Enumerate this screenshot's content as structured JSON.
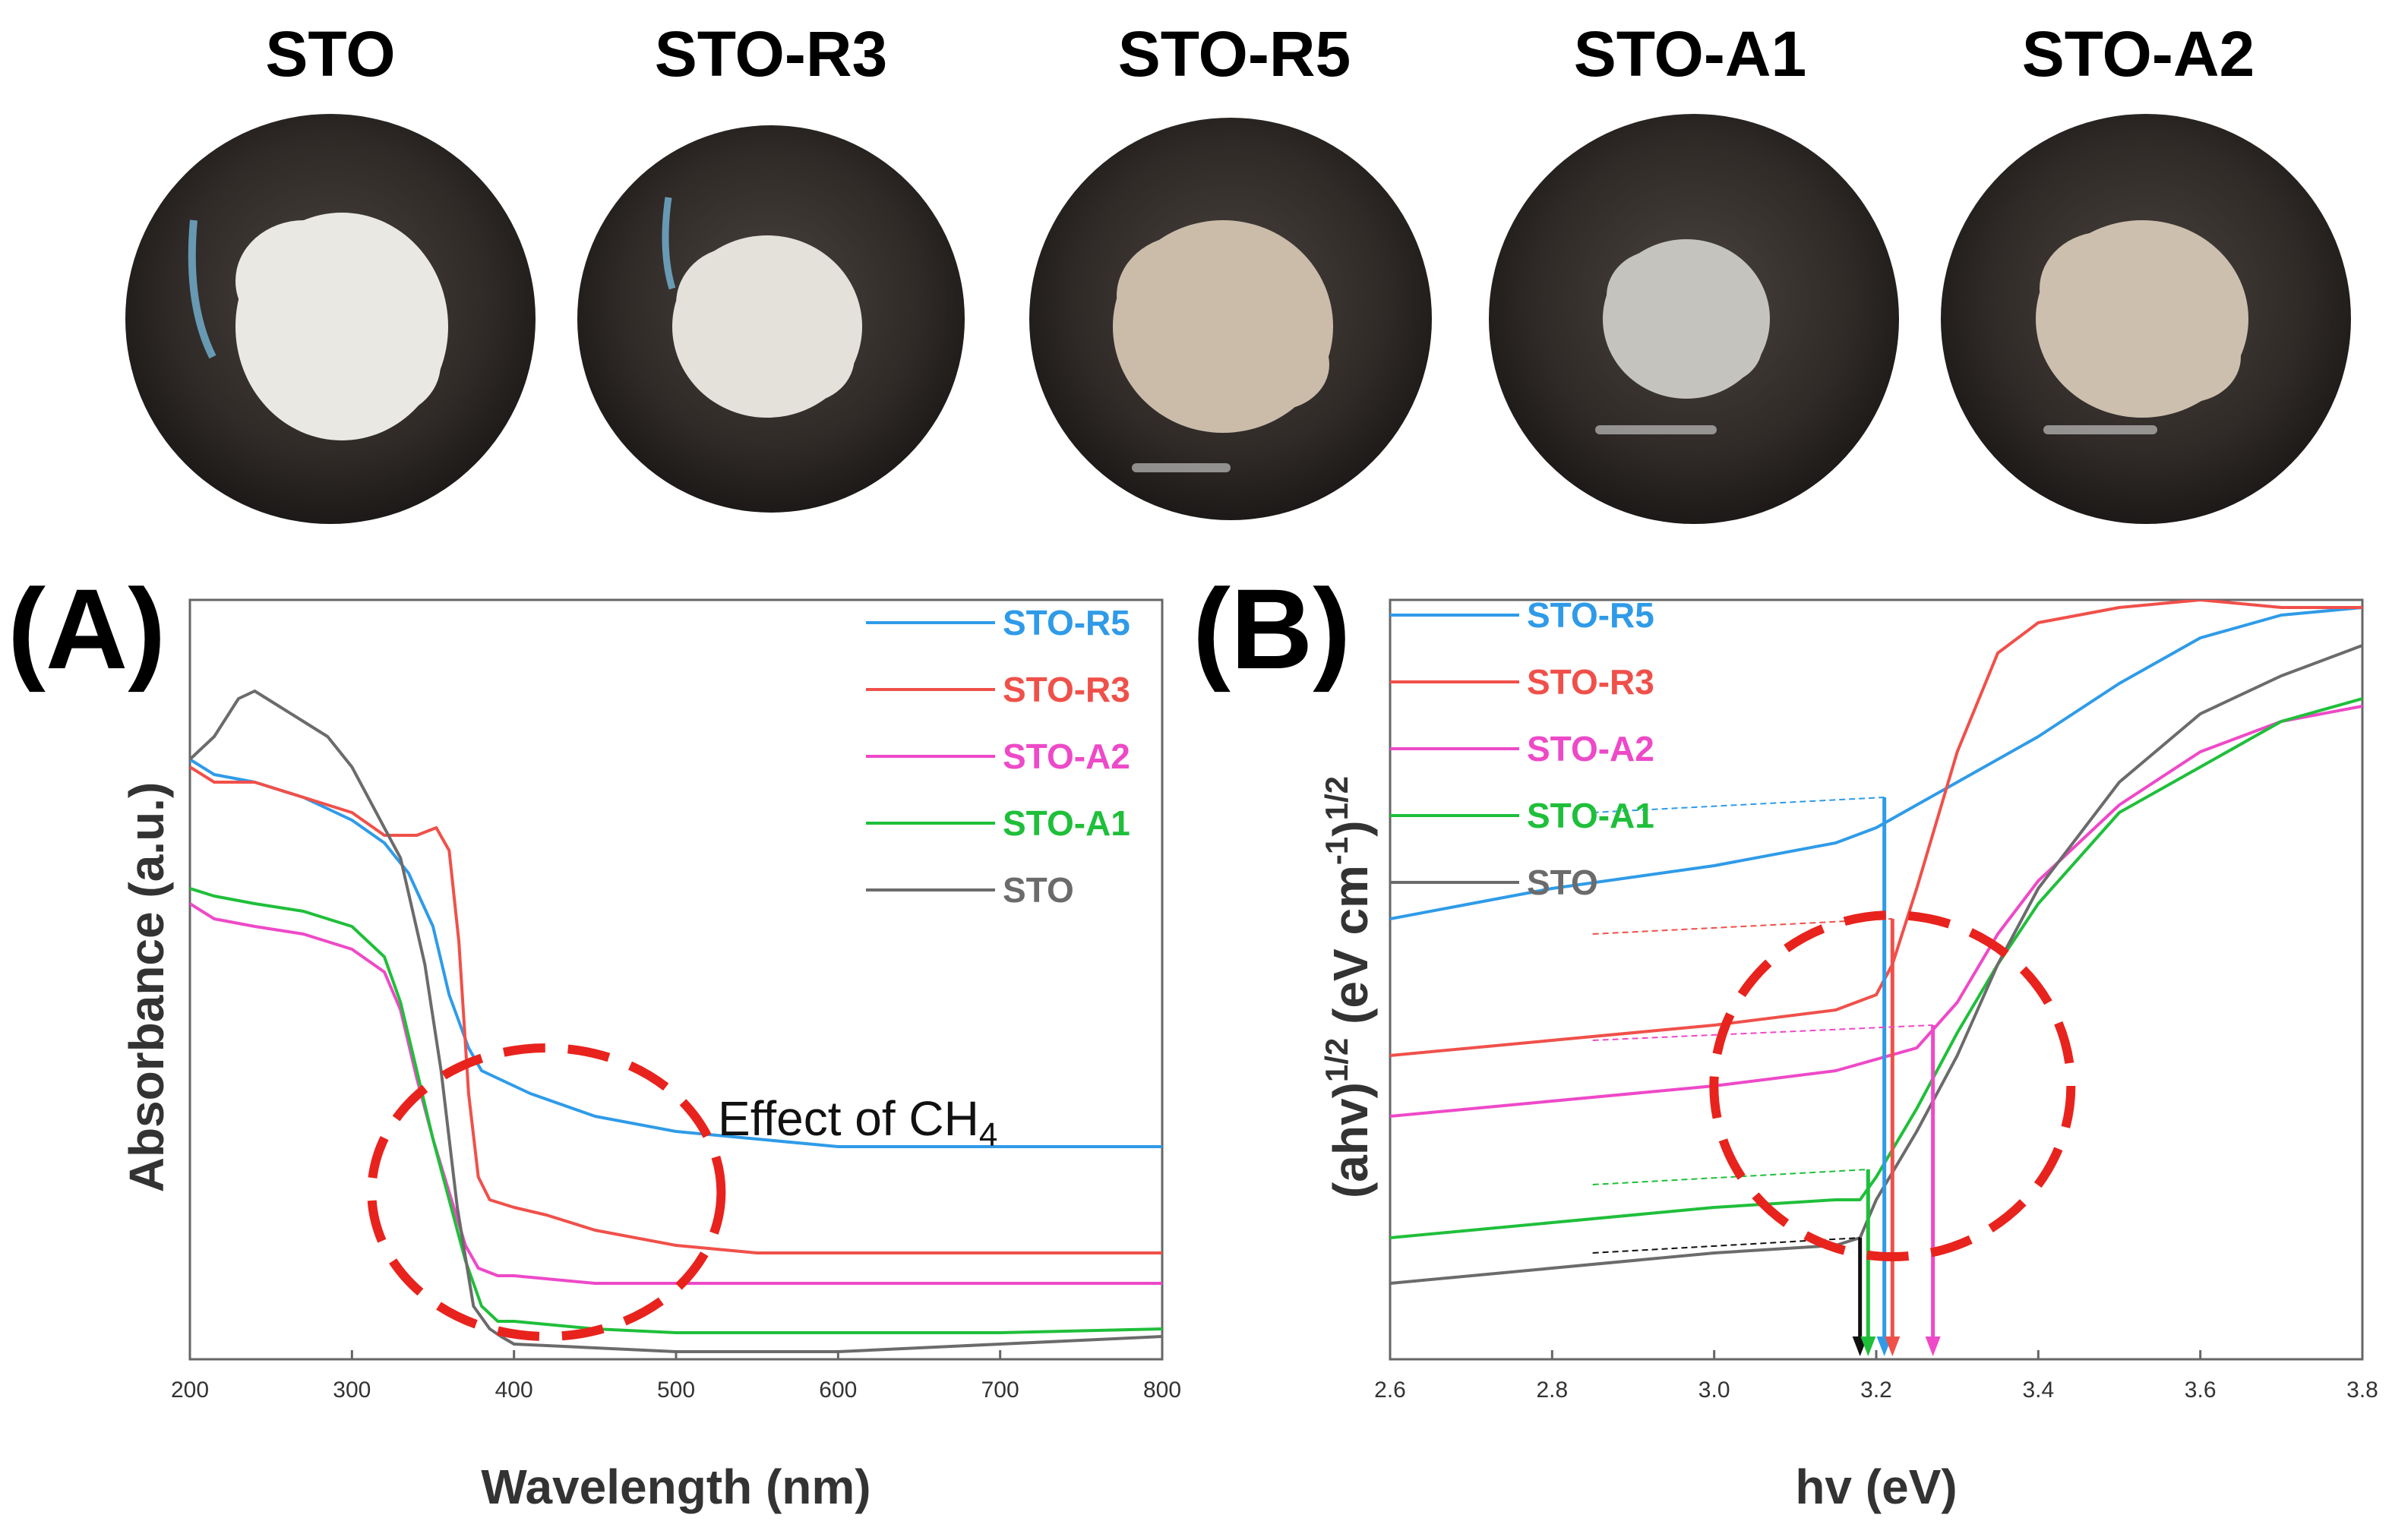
{
  "samples": [
    {
      "name": "STO",
      "powder_color": "#e9e8e3"
    },
    {
      "name": "STO-R3",
      "powder_color": "#e4e1da"
    },
    {
      "name": "STO-R5",
      "powder_color": "#cbbcaa"
    },
    {
      "name": "STO-A1",
      "powder_color": "#c4c3be"
    },
    {
      "name": "STO-A2",
      "powder_color": "#cdbfae"
    }
  ],
  "colors": {
    "STO-R5": "#2f9be8",
    "STO-R3": "#f0504a",
    "STO-A2": "#ee49c8",
    "STO-A1": "#1fbf3a",
    "STO": "#6b6b6b",
    "circle": "#e8231d"
  },
  "chart_data": [
    {
      "type": "line",
      "panel_label": "(A)",
      "title": "",
      "xlabel": "Wavelength (nm)",
      "ylabel": "Absorbance (a.u.)",
      "xlim": [
        200,
        800
      ],
      "ylim": [
        0,
        1
      ],
      "xticks": [
        200,
        300,
        400,
        500,
        600,
        700,
        800
      ],
      "y_tick_labels_shown": false,
      "legend_position": "top-right",
      "annotation": {
        "text": "Effect of CH",
        "subscript": "4",
        "marker": "dashed circle around absorption edge",
        "center": [
          420,
          0.22
        ]
      },
      "series": [
        {
          "name": "STO-R5",
          "x": [
            200,
            215,
            240,
            270,
            300,
            320,
            335,
            350,
            360,
            372,
            380,
            390,
            410,
            450,
            500,
            550,
            600,
            700,
            800
          ],
          "y": [
            0.79,
            0.77,
            0.76,
            0.74,
            0.71,
            0.68,
            0.64,
            0.57,
            0.48,
            0.41,
            0.38,
            0.37,
            0.35,
            0.32,
            0.3,
            0.29,
            0.28,
            0.28,
            0.28
          ]
        },
        {
          "name": "STO-R3",
          "x": [
            200,
            215,
            240,
            270,
            300,
            320,
            340,
            352,
            360,
            366,
            372,
            378,
            385,
            400,
            420,
            450,
            500,
            550,
            600,
            700,
            800
          ],
          "y": [
            0.78,
            0.76,
            0.76,
            0.74,
            0.72,
            0.69,
            0.69,
            0.7,
            0.67,
            0.55,
            0.35,
            0.24,
            0.21,
            0.2,
            0.19,
            0.17,
            0.15,
            0.14,
            0.14,
            0.14,
            0.14
          ]
        },
        {
          "name": "STO-A2",
          "x": [
            200,
            215,
            240,
            270,
            300,
            320,
            330,
            340,
            350,
            360,
            370,
            378,
            390,
            400,
            450,
            500,
            600,
            700,
            800
          ],
          "y": [
            0.6,
            0.58,
            0.57,
            0.56,
            0.54,
            0.51,
            0.46,
            0.37,
            0.29,
            0.22,
            0.15,
            0.12,
            0.11,
            0.11,
            0.1,
            0.1,
            0.1,
            0.1,
            0.1
          ]
        },
        {
          "name": "STO-A1",
          "x": [
            200,
            215,
            240,
            270,
            300,
            320,
            330,
            340,
            350,
            360,
            370,
            380,
            390,
            400,
            450,
            500,
            600,
            700,
            800
          ],
          "y": [
            0.62,
            0.61,
            0.6,
            0.59,
            0.57,
            0.53,
            0.47,
            0.38,
            0.29,
            0.21,
            0.13,
            0.07,
            0.05,
            0.05,
            0.04,
            0.035,
            0.035,
            0.035,
            0.04
          ]
        },
        {
          "name": "STO",
          "x": [
            200,
            215,
            230,
            240,
            255,
            270,
            285,
            300,
            315,
            330,
            345,
            355,
            365,
            375,
            385,
            392,
            400,
            450,
            500,
            550,
            600,
            700,
            800
          ],
          "y": [
            0.79,
            0.82,
            0.87,
            0.88,
            0.86,
            0.84,
            0.82,
            0.78,
            0.72,
            0.66,
            0.52,
            0.38,
            0.2,
            0.07,
            0.04,
            0.03,
            0.02,
            0.015,
            0.01,
            0.01,
            0.01,
            0.02,
            0.03
          ]
        }
      ]
    },
    {
      "type": "line",
      "panel_label": "(B)",
      "title": "",
      "xlabel": "hv (eV)",
      "ylabel": "(ahv)^1/2 (eV cm^-1)^1/2",
      "ylabel_parts": {
        "main": "(ahv)",
        "sup1": "1/2",
        "mid": " (eV cm",
        "sup2": "-1",
        "close": ")",
        "sup3": "1/2"
      },
      "xlim": [
        2.6,
        3.8
      ],
      "ylim": [
        0,
        1
      ],
      "xticks": [
        2.6,
        2.8,
        3.0,
        3.2,
        3.4,
        3.6,
        3.8
      ],
      "y_tick_labels_shown": false,
      "legend_position": "top-left",
      "band_gaps": [
        {
          "name": "STO",
          "value": 3.18
        },
        {
          "name": "STO-A1",
          "value": 3.19
        },
        {
          "name": "STO-R5",
          "value": 3.21
        },
        {
          "name": "STO-R3",
          "value": 3.22
        },
        {
          "name": "STO-A2",
          "value": 3.27
        }
      ],
      "tangent_starts": {
        "STO-R5": 0.74,
        "STO-R3": 0.58,
        "STO-A2": 0.44,
        "STO-A1": 0.25,
        "STO": 0.16
      },
      "series": [
        {
          "name": "STO-R5",
          "x": [
            2.6,
            2.8,
            3.0,
            3.15,
            3.2,
            3.25,
            3.3,
            3.4,
            3.5,
            3.6,
            3.7,
            3.8
          ],
          "y": [
            0.58,
            0.62,
            0.65,
            0.68,
            0.7,
            0.73,
            0.76,
            0.82,
            0.89,
            0.95,
            0.98,
            0.99
          ]
        },
        {
          "name": "STO-R3",
          "x": [
            2.6,
            2.8,
            3.0,
            3.15,
            3.2,
            3.22,
            3.25,
            3.3,
            3.35,
            3.4,
            3.5,
            3.6,
            3.7,
            3.8
          ],
          "y": [
            0.4,
            0.42,
            0.44,
            0.46,
            0.48,
            0.52,
            0.62,
            0.8,
            0.93,
            0.97,
            0.99,
            1.0,
            0.99,
            0.99
          ]
        },
        {
          "name": "STO-A2",
          "x": [
            2.6,
            2.8,
            3.0,
            3.15,
            3.25,
            3.3,
            3.35,
            3.4,
            3.5,
            3.6,
            3.7,
            3.8
          ],
          "y": [
            0.32,
            0.34,
            0.36,
            0.38,
            0.41,
            0.47,
            0.56,
            0.63,
            0.73,
            0.8,
            0.84,
            0.86
          ]
        },
        {
          "name": "STO-A1",
          "x": [
            2.6,
            2.8,
            3.0,
            3.15,
            3.18,
            3.2,
            3.25,
            3.3,
            3.35,
            3.4,
            3.5,
            3.6,
            3.7,
            3.8
          ],
          "y": [
            0.16,
            0.18,
            0.2,
            0.21,
            0.21,
            0.24,
            0.33,
            0.43,
            0.52,
            0.6,
            0.72,
            0.78,
            0.84,
            0.87
          ]
        },
        {
          "name": "STO",
          "x": [
            2.6,
            2.8,
            3.0,
            3.15,
            3.18,
            3.2,
            3.25,
            3.3,
            3.35,
            3.4,
            3.5,
            3.6,
            3.7,
            3.8
          ],
          "y": [
            0.1,
            0.12,
            0.14,
            0.15,
            0.16,
            0.21,
            0.3,
            0.4,
            0.52,
            0.62,
            0.76,
            0.85,
            0.9,
            0.94
          ]
        }
      ]
    }
  ]
}
